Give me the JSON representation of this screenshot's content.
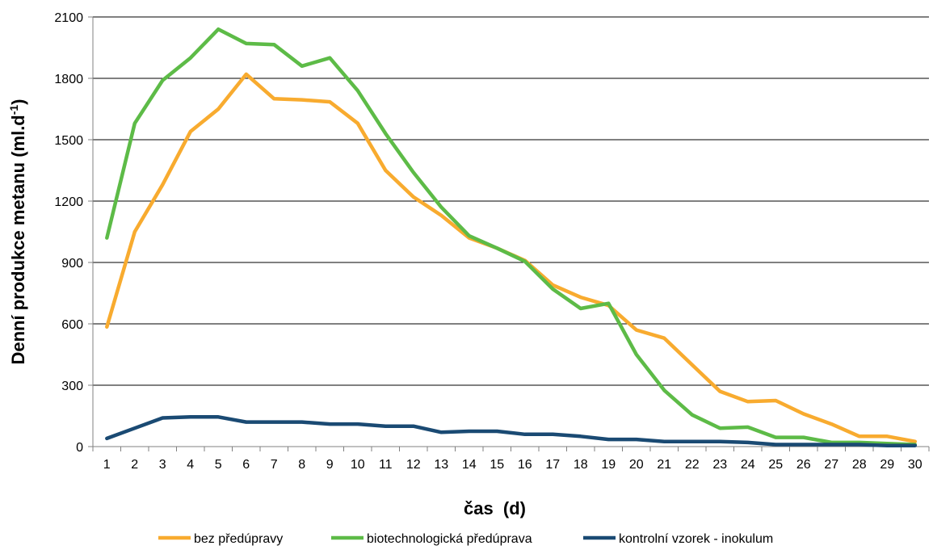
{
  "chart_data": {
    "type": "line",
    "title": "",
    "xlabel": "čas  (d)",
    "ylabel": "Denní produkce metanu (ml.d",
    "ylabel_superscript": "-1",
    "ylabel_suffix": ")",
    "categories": [
      "1",
      "2",
      "3",
      "4",
      "5",
      "6",
      "7",
      "8",
      "9",
      "10",
      "11",
      "12",
      "13",
      "14",
      "15",
      "16",
      "17",
      "18",
      "19",
      "20",
      "21",
      "22",
      "23",
      "24",
      "25",
      "26",
      "27",
      "28",
      "29",
      "30"
    ],
    "ylim": [
      0,
      2100
    ],
    "yticks": [
      0,
      300,
      600,
      900,
      1200,
      1500,
      1800,
      2100
    ],
    "grid": "horizontal",
    "legend_position": "bottom",
    "series": [
      {
        "name": "bez předúpravy",
        "color": "#f8ab2f",
        "values": [
          585,
          1050,
          1280,
          1540,
          1650,
          1820,
          1700,
          1695,
          1685,
          1580,
          1350,
          1220,
          1130,
          1020,
          970,
          910,
          790,
          730,
          690,
          570,
          530,
          400,
          270,
          220,
          225,
          160,
          110,
          50,
          50,
          25
        ]
      },
      {
        "name": "biotechnologická předúprava",
        "color": "#5dbb47",
        "values": [
          1020,
          1580,
          1790,
          1900,
          2040,
          1970,
          1965,
          1860,
          1900,
          1740,
          1530,
          1340,
          1170,
          1030,
          970,
          905,
          770,
          675,
          700,
          450,
          275,
          155,
          90,
          95,
          45,
          45,
          20,
          20,
          15,
          10
        ]
      },
      {
        "name": "kontrolní vzorek - inokulum",
        "color": "#1a4a73",
        "values": [
          40,
          90,
          140,
          145,
          145,
          120,
          120,
          120,
          110,
          110,
          100,
          100,
          70,
          75,
          75,
          60,
          60,
          50,
          35,
          35,
          25,
          25,
          25,
          20,
          10,
          10,
          10,
          10,
          5,
          5
        ]
      }
    ]
  }
}
